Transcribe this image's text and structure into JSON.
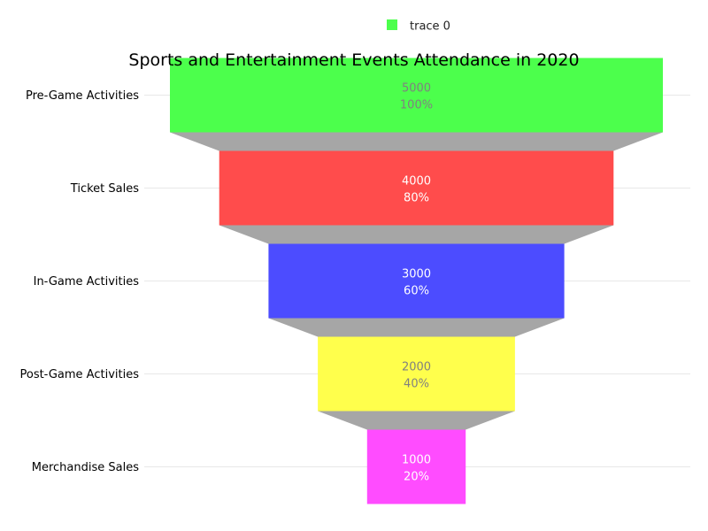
{
  "chart_data": {
    "type": "funnel",
    "title": "Sports and Entertainment Events Attendance in 2020",
    "legend": {
      "position": "top-center",
      "entries": [
        "trace 0"
      ]
    },
    "grid": true,
    "categories": [
      "Pre-Game Activities",
      "Ticket Sales",
      "In-Game Activities",
      "Post-Game Activities",
      "Merchandise Sales"
    ],
    "values": [
      5000,
      4000,
      3000,
      2000,
      1000
    ],
    "percent_labels": [
      "100%",
      "80%",
      "60%",
      "40%",
      "20%"
    ],
    "colors": [
      "#4cff4c",
      "#ff4c4c",
      "#4c4cff",
      "#ffff4c",
      "#ff4cff"
    ],
    "label_colors": [
      "#808080",
      "#ffffff",
      "#ffffff",
      "#808080",
      "#ffffff"
    ],
    "connector_color": "#a6a6a6",
    "legend_color": "#4cff4c"
  }
}
